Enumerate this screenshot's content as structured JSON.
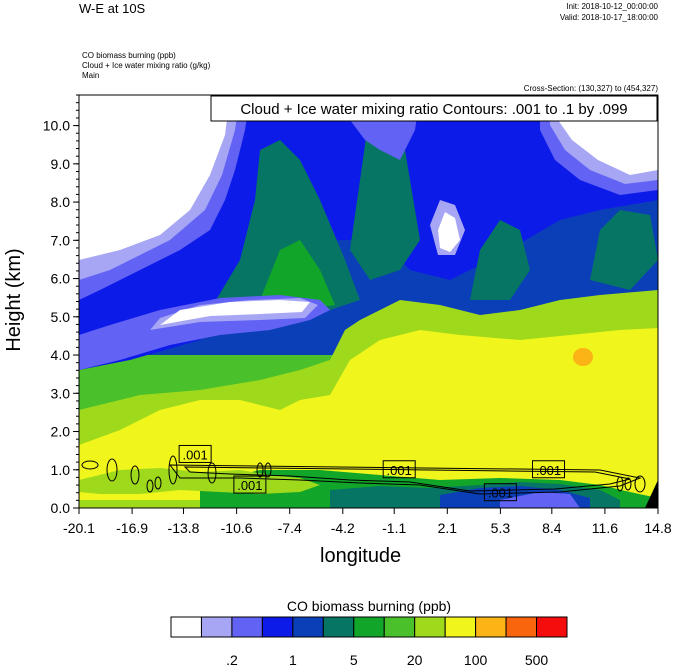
{
  "header": {
    "title": "W-E at 10S",
    "init": "Init: 2018-10-12_00:00:00",
    "valid": "Valid: 2018-10-17_18:00:00",
    "field1": "CO biomass burning   (ppb)",
    "field2": "Cloud + Ice water mixing ratio   (g/kg)",
    "field3": "Main",
    "cross_section": "Cross-Section: (130,327) to (454,327)"
  },
  "colors": {
    "levels": [
      "#ffffff",
      "#a6a6f5",
      "#6262f4",
      "#0d1be8",
      "#0b3fb8",
      "#077563",
      "#11a62a",
      "#4ac12b",
      "#9fd91c",
      "#f0f51c",
      "#fbb316",
      "#f9650c",
      "#f50d0d"
    ]
  },
  "chart_data": {
    "type": "contour",
    "title": "Cloud + Ice water mixing ratio Contours: .001 to .1 by .099",
    "xlabel": "longitude",
    "ylabel": "Height (km)",
    "xlim": [
      -20.1,
      14.8
    ],
    "ylim": [
      0.0,
      10.8
    ],
    "x_ticks": [
      "-20.1",
      "-16.9",
      "-13.8",
      "-10.6",
      "-7.4",
      "-4.2",
      "-1.1",
      "2.1",
      "5.3",
      "8.4",
      "11.6",
      "14.8"
    ],
    "y_ticks": [
      "0.0",
      "1.0",
      "2.0",
      "3.0",
      "4.0",
      "5.0",
      "6.0",
      "7.0",
      "8.0",
      "9.0",
      "10.0"
    ],
    "contour_labels": [
      {
        "text": ".001",
        "lon": -13.1,
        "height": 1.4
      },
      {
        "text": ".001",
        "lon": -9.8,
        "height": 0.6
      },
      {
        "text": ".001",
        "lon": -0.8,
        "height": 1.0
      },
      {
        "text": ".001",
        "lon": 5.3,
        "height": 0.4
      },
      {
        "text": ".001",
        "lon": 8.2,
        "height": 1.0
      }
    ],
    "colorbar": {
      "label": "CO biomass burning  (ppb)",
      "tick_labels": [
        ".2",
        "1",
        "5",
        "20",
        "100",
        "500"
      ]
    }
  }
}
